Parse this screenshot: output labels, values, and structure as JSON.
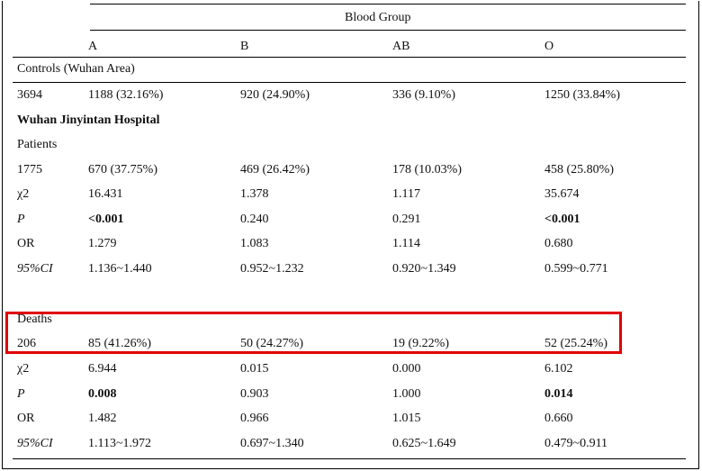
{
  "table": {
    "group_header": "Blood Group",
    "columns": [
      "A",
      "B",
      "AB",
      "O"
    ],
    "controls": {
      "label": "Controls (Wuhan Area)",
      "total": "3694",
      "values": [
        "1188 (32.16%)",
        "920 (24.90%)",
        "336 (9.10%)",
        "1250 (33.84%)"
      ]
    },
    "hospital": "Wuhan Jinyintan Hospital",
    "patients": {
      "label": "Patients",
      "total": "1775",
      "values": [
        "670 (37.75%)",
        "469 (26.42%)",
        "178 (10.03%)",
        "458 (25.80%)"
      ],
      "chi2": {
        "label": "χ2",
        "values": [
          "16.431",
          "1.378",
          "1.117",
          "35.674"
        ]
      },
      "p": {
        "label": "P",
        "values": [
          "<0.001",
          "0.240",
          "0.291",
          "<0.001"
        ]
      },
      "or": {
        "label": "OR",
        "values": [
          "1.279",
          "1.083",
          "1.114",
          "0.680"
        ]
      },
      "ci": {
        "label": "95%CI",
        "values": [
          "1.136~1.440",
          "0.952~1.232",
          "0.920~1.349",
          "0.599~0.771"
        ]
      }
    },
    "deaths": {
      "label": "Deaths",
      "total": "206",
      "values": [
        "85 (41.26%)",
        "50 (24.27%)",
        "19 (9.22%)",
        "52 (25.24%)"
      ],
      "chi2": {
        "label": "χ2",
        "values": [
          "6.944",
          "0.015",
          "0.000",
          "6.102"
        ]
      },
      "p": {
        "label": "P",
        "values": [
          "0.008",
          "0.903",
          "1.000",
          "0.014"
        ]
      },
      "or": {
        "label": "OR",
        "values": [
          "1.482",
          "0.966",
          "1.015",
          "0.660"
        ]
      },
      "ci": {
        "label": "95%CI",
        "values": [
          "1.113~1.972",
          "0.697~1.340",
          "0.625~1.649",
          "0.479~0.911"
        ]
      }
    }
  },
  "highlight_color": "#e00000"
}
